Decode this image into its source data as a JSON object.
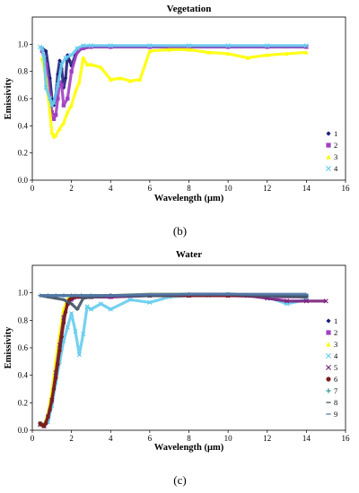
{
  "chart_data": [
    {
      "type": "scatter",
      "title": "Vegetation",
      "xlabel": "Wavelength (μm)",
      "ylabel": "Emissivity",
      "xlim": [
        0,
        16
      ],
      "ylim": [
        0,
        1.2
      ],
      "xticks": [
        "0",
        "2",
        "4",
        "6",
        "8",
        "10",
        "12",
        "14",
        "16"
      ],
      "yticks": [
        "0.0",
        "0.2",
        "0.4",
        "0.6",
        "0.8",
        "1.0"
      ],
      "caption": "(b)",
      "legend_position": "right",
      "series": [
        {
          "name": "1",
          "marker": "diamond",
          "color": "#1f1f7a",
          "x": [
            0.5,
            0.7,
            0.9,
            1.0,
            1.1,
            1.2,
            1.3,
            1.4,
            1.5,
            1.6,
            1.7,
            1.8,
            1.9,
            2.0,
            2.2,
            2.5,
            3,
            4,
            6,
            8,
            10,
            12,
            14
          ],
          "y": [
            0.97,
            0.95,
            0.75,
            0.6,
            0.55,
            0.62,
            0.78,
            0.88,
            0.82,
            0.68,
            0.75,
            0.92,
            0.88,
            0.84,
            0.92,
            0.97,
            0.98,
            0.98,
            0.98,
            0.98,
            0.98,
            0.98,
            0.98
          ]
        },
        {
          "name": "2",
          "marker": "square",
          "color": "#a040c0",
          "x": [
            0.5,
            0.7,
            0.9,
            1.0,
            1.1,
            1.2,
            1.3,
            1.4,
            1.5,
            1.6,
            1.8,
            2.0,
            2.3,
            2.6,
            3,
            4,
            6,
            8,
            10,
            12,
            14
          ],
          "y": [
            0.95,
            0.85,
            0.62,
            0.5,
            0.45,
            0.48,
            0.6,
            0.72,
            0.7,
            0.55,
            0.6,
            0.8,
            0.95,
            0.97,
            0.98,
            0.98,
            0.98,
            0.98,
            0.98,
            0.98,
            0.98
          ]
        },
        {
          "name": "3",
          "marker": "triangle",
          "color": "#ffff00",
          "x": [
            0.5,
            0.7,
            0.9,
            1.0,
            1.1,
            1.2,
            1.4,
            1.6,
            1.8,
            2.0,
            2.2,
            2.4,
            2.6,
            2.8,
            3.0,
            3.5,
            4.0,
            4.5,
            5.0,
            5.5,
            6.0,
            7,
            8,
            9,
            10,
            11,
            12,
            13,
            14
          ],
          "y": [
            0.9,
            0.75,
            0.5,
            0.35,
            0.32,
            0.33,
            0.38,
            0.42,
            0.5,
            0.55,
            0.65,
            0.72,
            0.9,
            0.85,
            0.85,
            0.83,
            0.74,
            0.75,
            0.73,
            0.74,
            0.95,
            0.96,
            0.96,
            0.94,
            0.93,
            0.9,
            0.92,
            0.93,
            0.94
          ]
        },
        {
          "name": "4",
          "marker": "x",
          "color": "#66ccee",
          "x": [
            0.4,
            0.5,
            0.6,
            0.7,
            0.9,
            1.0,
            1.1,
            1.3,
            1.5,
            1.7,
            2.0,
            2.3,
            2.6,
            3,
            4,
            6,
            8,
            10,
            12,
            14
          ],
          "y": [
            0.98,
            0.97,
            0.9,
            0.68,
            0.6,
            0.55,
            0.57,
            0.7,
            0.85,
            0.9,
            0.92,
            0.97,
            0.99,
            0.99,
            0.99,
            0.99,
            0.99,
            0.99,
            0.99,
            0.99
          ]
        }
      ]
    },
    {
      "type": "scatter",
      "title": "Water",
      "xlabel": "Wavelength (μm)",
      "ylabel": "Emissivity",
      "xlim": [
        0,
        16
      ],
      "ylim": [
        0,
        1.2
      ],
      "xticks": [
        "0",
        "2",
        "4",
        "6",
        "8",
        "10",
        "12",
        "14",
        "16"
      ],
      "yticks": [
        "0.0",
        "0.2",
        "0.4",
        "0.6",
        "0.8",
        "1.0"
      ],
      "caption": "(c)",
      "legend_position": "right",
      "series": [
        {
          "name": "1",
          "marker": "diamond",
          "color": "#1f1f7a",
          "x": [
            0.4,
            0.6,
            0.8,
            1.0,
            1.2,
            1.4,
            1.6,
            1.8,
            2.0,
            2.2,
            2.5,
            3,
            4,
            6,
            8,
            10,
            12,
            14
          ],
          "y": [
            0.05,
            0.04,
            0.1,
            0.25,
            0.45,
            0.65,
            0.85,
            0.93,
            0.97,
            0.98,
            0.97,
            0.98,
            0.98,
            0.98,
            0.99,
            0.99,
            0.98,
            0.98
          ]
        },
        {
          "name": "2",
          "marker": "square",
          "color": "#a040c0",
          "x": [
            0.4,
            0.6,
            0.8,
            1.0,
            1.2,
            1.4,
            1.6,
            1.8,
            2.0,
            2.3,
            2.6,
            3,
            4,
            6,
            8,
            10,
            12,
            14
          ],
          "y": [
            0.04,
            0.03,
            0.08,
            0.2,
            0.4,
            0.6,
            0.8,
            0.92,
            0.95,
            0.97,
            0.97,
            0.97,
            0.97,
            0.98,
            0.98,
            0.98,
            0.97,
            0.97
          ]
        },
        {
          "name": "3",
          "marker": "triangle",
          "color": "#ffff00",
          "x": [
            0.4,
            0.6,
            0.8,
            1.0,
            1.2,
            1.4,
            1.6,
            1.8,
            2.0,
            2.3,
            2.6,
            3,
            4,
            6,
            8,
            10,
            12,
            14
          ],
          "y": [
            0.04,
            0.04,
            0.12,
            0.28,
            0.5,
            0.7,
            0.88,
            0.95,
            0.98,
            0.98,
            0.97,
            0.98,
            0.98,
            0.99,
            0.99,
            0.99,
            0.98,
            0.98
          ]
        },
        {
          "name": "4",
          "marker": "x",
          "color": "#66ccee",
          "x": [
            0.4,
            0.6,
            0.8,
            1.0,
            1.2,
            1.4,
            1.6,
            1.8,
            2.0,
            2.2,
            2.4,
            2.6,
            2.8,
            3.0,
            3.5,
            4.0,
            5.0,
            6,
            7,
            8,
            9,
            10,
            11,
            12,
            13,
            14
          ],
          "y": [
            0.05,
            0.03,
            0.06,
            0.18,
            0.35,
            0.5,
            0.65,
            0.75,
            0.85,
            0.72,
            0.55,
            0.7,
            0.9,
            0.88,
            0.92,
            0.88,
            0.95,
            0.93,
            0.97,
            0.98,
            0.98,
            0.99,
            0.98,
            0.97,
            0.92,
            0.95
          ]
        },
        {
          "name": "5",
          "marker": "x",
          "color": "#7a1f7a",
          "x": [
            0.4,
            0.6,
            0.8,
            1.0,
            1.2,
            1.4,
            1.6,
            1.8,
            2.0,
            2.3,
            2.6,
            3,
            4,
            6,
            8,
            10,
            11,
            12,
            13,
            14,
            15
          ],
          "y": [
            0.04,
            0.03,
            0.1,
            0.22,
            0.42,
            0.62,
            0.82,
            0.92,
            0.96,
            0.97,
            0.97,
            0.97,
            0.97,
            0.98,
            0.98,
            0.98,
            0.98,
            0.96,
            0.94,
            0.94,
            0.94
          ]
        },
        {
          "name": "6",
          "marker": "circle",
          "color": "#7a1f1f",
          "x": [
            0.4,
            0.5,
            0.6,
            0.7,
            0.8,
            0.9,
            1.0,
            1.1,
            1.2,
            1.3,
            1.4,
            1.5,
            1.6,
            1.7,
            1.8,
            1.9,
            2.0,
            2.2,
            2.5,
            3,
            4,
            6,
            8,
            10,
            12,
            14
          ],
          "y": [
            0.05,
            0.04,
            0.03,
            0.05,
            0.1,
            0.15,
            0.22,
            0.3,
            0.38,
            0.48,
            0.58,
            0.68,
            0.78,
            0.86,
            0.92,
            0.95,
            0.96,
            0.97,
            0.97,
            0.97,
            0.98,
            0.98,
            0.98,
            0.98,
            0.98,
            0.98
          ]
        },
        {
          "name": "7",
          "marker": "plus",
          "color": "#1f8a8a",
          "x": [
            0.4,
            0.8,
            1.2,
            1.6,
            2.0,
            2.5,
            3,
            4,
            6,
            8,
            10,
            12,
            14
          ],
          "y": [
            0.98,
            0.98,
            0.98,
            0.98,
            0.98,
            0.98,
            0.98,
            0.98,
            0.98,
            0.99,
            0.99,
            0.98,
            0.98
          ]
        },
        {
          "name": "8",
          "marker": "dash",
          "color": "#445566",
          "x": [
            0.4,
            0.8,
            1.2,
            1.6,
            2.0,
            2.3,
            2.6,
            3,
            4,
            6,
            8,
            10,
            12,
            14
          ],
          "y": [
            0.98,
            0.97,
            0.96,
            0.95,
            0.92,
            0.88,
            0.96,
            0.97,
            0.98,
            0.98,
            0.99,
            0.99,
            0.98,
            0.97
          ]
        },
        {
          "name": "9",
          "marker": "dash",
          "color": "#5577aa",
          "x": [
            0.4,
            0.8,
            1.2,
            1.6,
            2.0,
            2.5,
            3,
            4,
            6,
            8,
            10,
            12,
            14
          ],
          "y": [
            0.98,
            0.98,
            0.98,
            0.98,
            0.98,
            0.98,
            0.98,
            0.98,
            0.99,
            0.99,
            0.99,
            0.99,
            0.99
          ]
        }
      ]
    }
  ]
}
